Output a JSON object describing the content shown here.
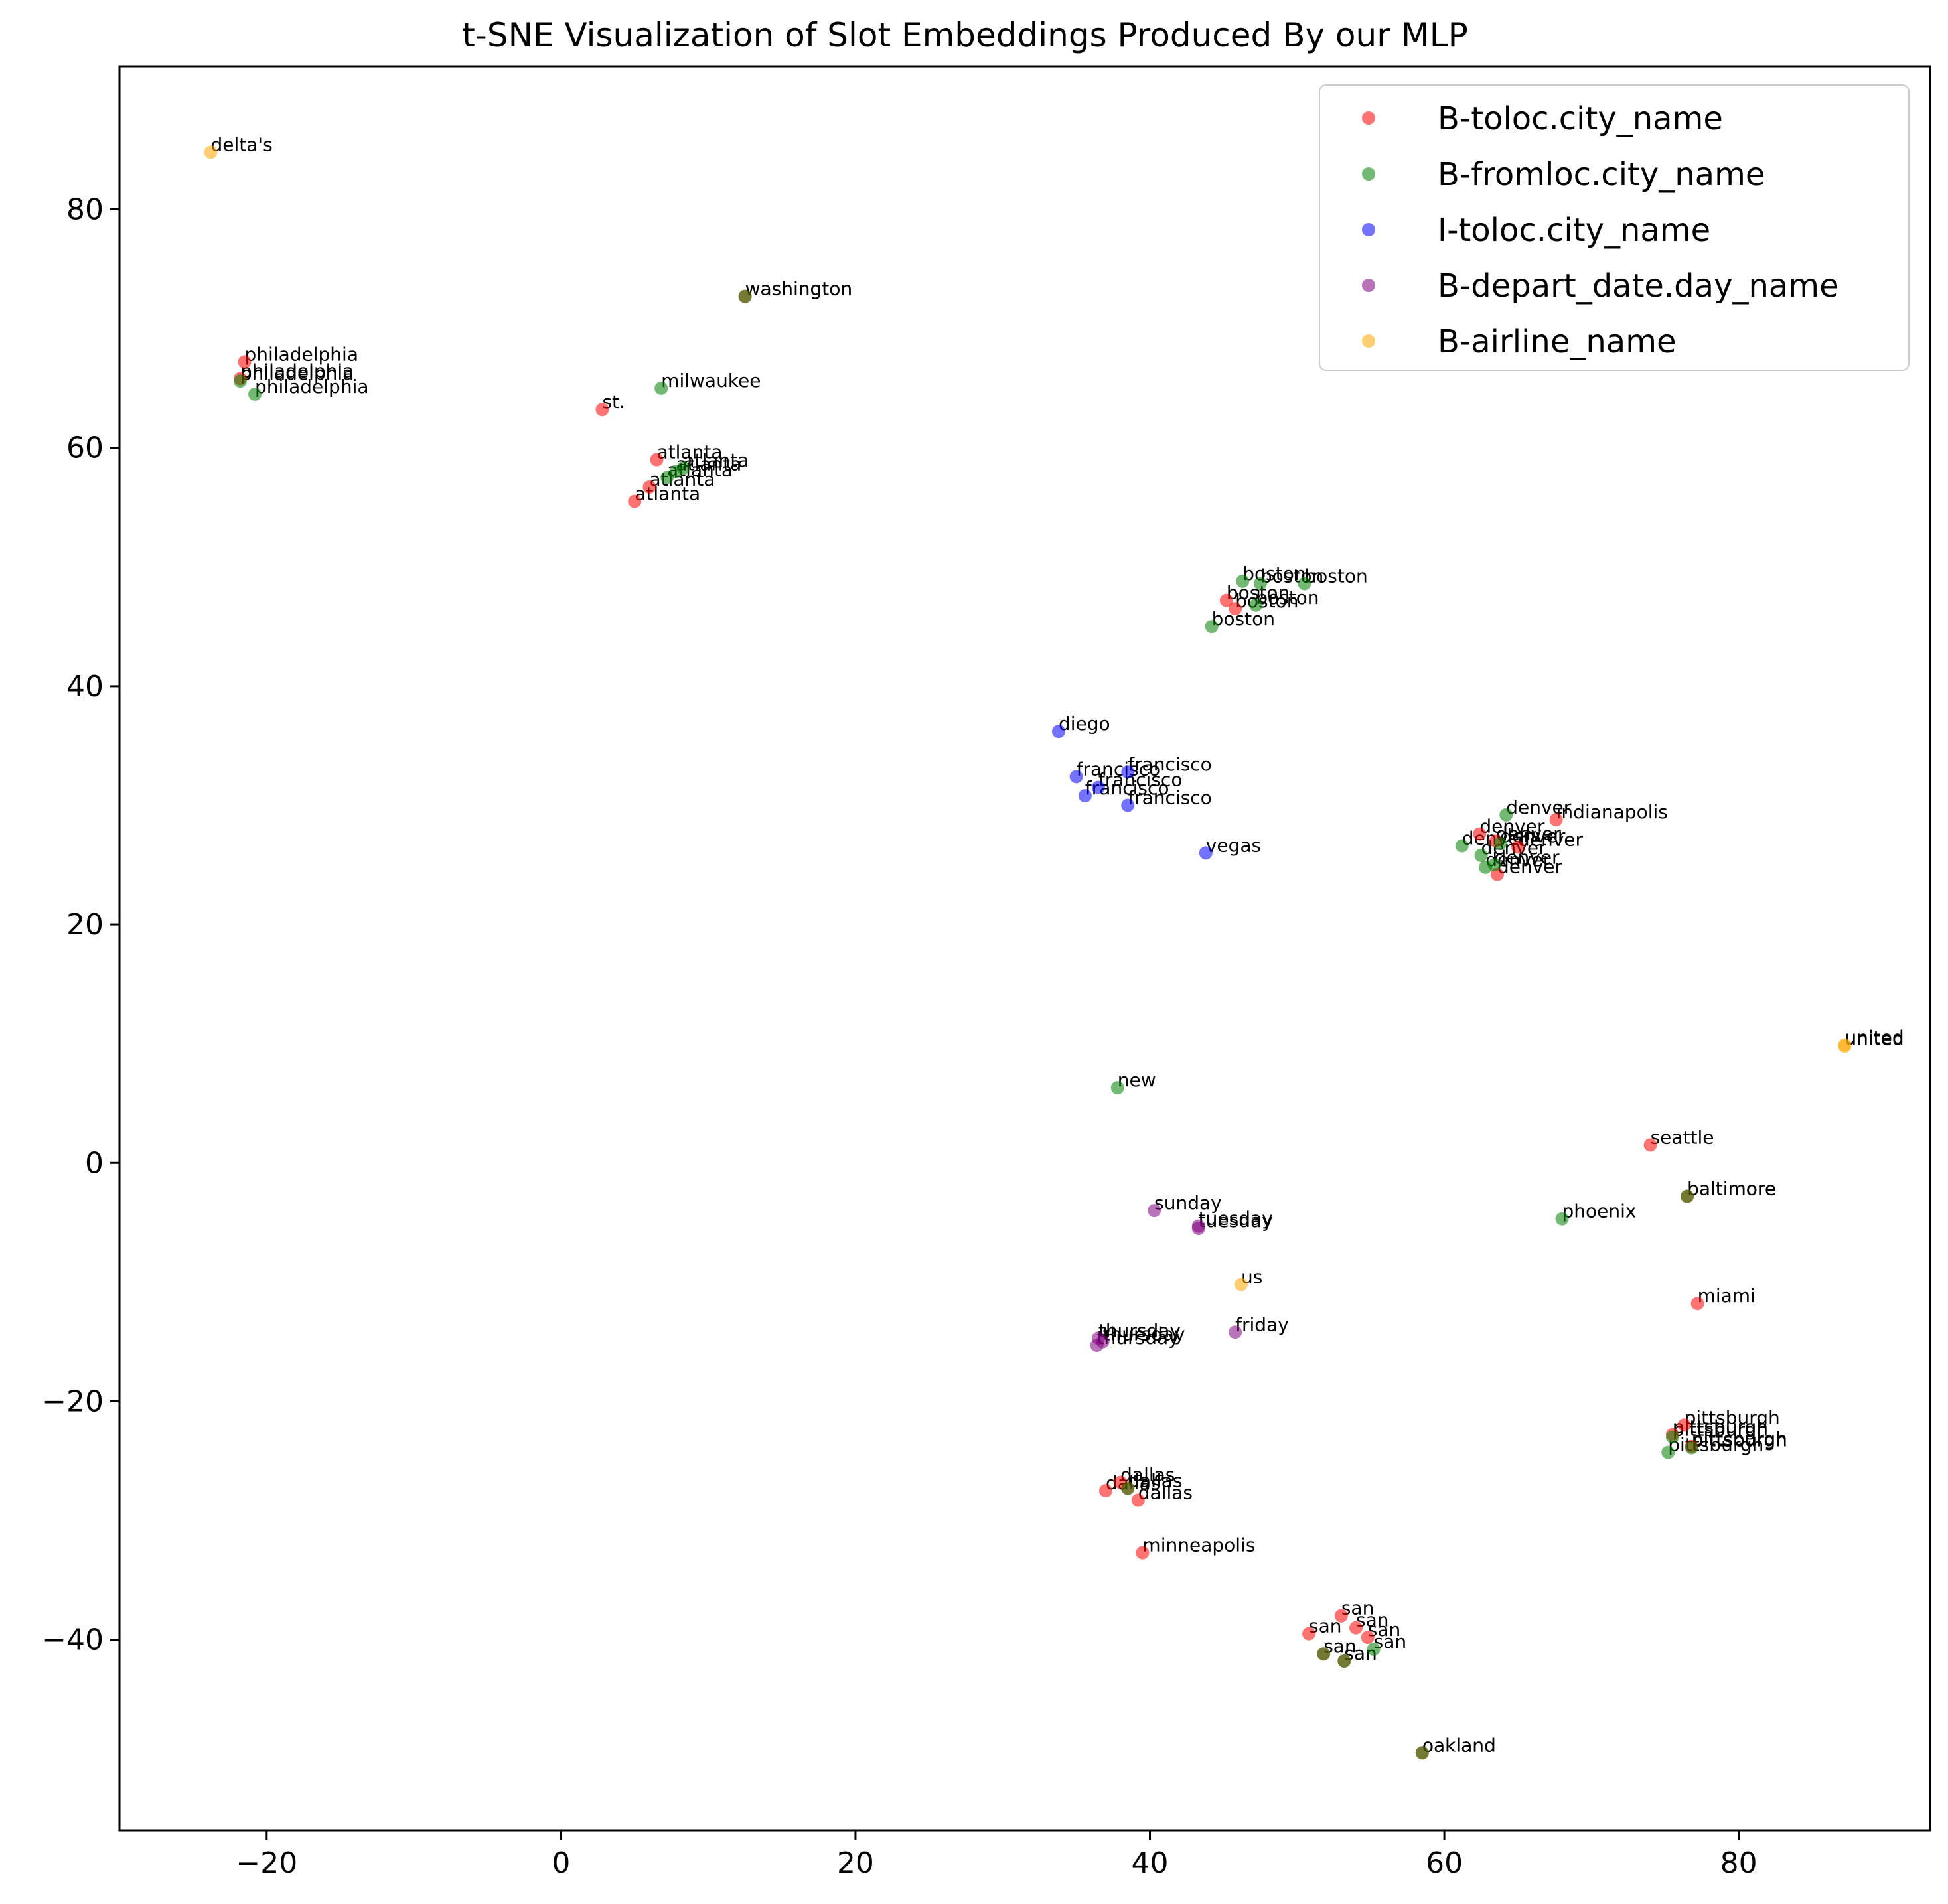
{
  "chart_data": {
    "type": "scatter",
    "title": "t-SNE Visualization of Slot Embeddings Produced By our MLP",
    "xlabel": "",
    "ylabel": "",
    "xlim": [
      -30,
      93
    ],
    "ylim": [
      -56,
      92
    ],
    "xticks": [
      -20,
      0,
      20,
      40,
      60,
      80
    ],
    "yticks": [
      -40,
      -20,
      0,
      20,
      40,
      60,
      80
    ],
    "xtick_labels": [
      "−20",
      "0",
      "20",
      "40",
      "60",
      "80"
    ],
    "ytick_labels": [
      "−40",
      "−20",
      "0",
      "20",
      "40",
      "60",
      "80"
    ],
    "grid": false,
    "legend_position": "top-right",
    "series": [
      {
        "name": "B-toloc.city_name",
        "color": "#ff0000",
        "points": [
          {
            "x": -21.5,
            "y": 67.2,
            "label": "philadelphia"
          },
          {
            "x": -21.8,
            "y": 65.8,
            "label": "philadelphia"
          },
          {
            "x": 2.8,
            "y": 63.2,
            "label": "st."
          },
          {
            "x": 6.5,
            "y": 59.0,
            "label": "atlanta"
          },
          {
            "x": 6.0,
            "y": 56.7,
            "label": "atlanta"
          },
          {
            "x": 5.0,
            "y": 55.5,
            "label": "atlanta"
          },
          {
            "x": 45.2,
            "y": 47.2,
            "label": "boston"
          },
          {
            "x": 45.8,
            "y": 46.5,
            "label": "boston"
          },
          {
            "x": 67.6,
            "y": 28.8,
            "label": "indianapolis"
          },
          {
            "x": 62.4,
            "y": 27.6,
            "label": "denver"
          },
          {
            "x": 63.5,
            "y": 27.0,
            "label": "denver"
          },
          {
            "x": 63.6,
            "y": 24.2,
            "label": "denver"
          },
          {
            "x": 65.0,
            "y": 26.5,
            "label": "denver"
          },
          {
            "x": 74.0,
            "y": 1.5,
            "label": "seattle"
          },
          {
            "x": 76.5,
            "y": -2.8,
            "label": "baltimore"
          },
          {
            "x": 77.2,
            "y": -11.8,
            "label": "miami"
          },
          {
            "x": 76.3,
            "y": -22.0,
            "label": "pittsburgh"
          },
          {
            "x": 75.5,
            "y": -22.8,
            "label": "pittsburgh"
          },
          {
            "x": 76.8,
            "y": -23.8,
            "label": "pittsburgh"
          },
          {
            "x": 38.0,
            "y": -26.8,
            "label": "dallas"
          },
          {
            "x": 38.5,
            "y": -27.3,
            "label": "dallas"
          },
          {
            "x": 37.0,
            "y": -27.5,
            "label": "dallas"
          },
          {
            "x": 39.2,
            "y": -28.3,
            "label": "dallas"
          },
          {
            "x": 39.5,
            "y": -32.7,
            "label": "minneapolis"
          },
          {
            "x": 53.0,
            "y": -38.0,
            "label": "san"
          },
          {
            "x": 54.0,
            "y": -39.0,
            "label": "san"
          },
          {
            "x": 54.8,
            "y": -39.8,
            "label": "san"
          },
          {
            "x": 50.8,
            "y": -39.5,
            "label": "san"
          },
          {
            "x": 51.8,
            "y": -41.2,
            "label": "san"
          },
          {
            "x": 53.2,
            "y": -41.8,
            "label": "san"
          },
          {
            "x": 12.5,
            "y": 72.7,
            "label": "washington"
          },
          {
            "x": 58.5,
            "y": -49.5,
            "label": "oakland"
          }
        ]
      },
      {
        "name": "B-fromloc.city_name",
        "color": "#008000",
        "points": [
          {
            "x": -20.8,
            "y": 64.5,
            "label": "philadelphia"
          },
          {
            "x": -21.8,
            "y": 65.6,
            "label": "philadelphia"
          },
          {
            "x": 6.8,
            "y": 65.0,
            "label": "milwaukee"
          },
          {
            "x": 7.2,
            "y": 57.5,
            "label": "atlanta"
          },
          {
            "x": 7.8,
            "y": 58.0,
            "label": "atlanta"
          },
          {
            "x": 8.3,
            "y": 58.3,
            "label": "atlanta"
          },
          {
            "x": 12.5,
            "y": 72.7,
            "label": "washington"
          },
          {
            "x": 46.3,
            "y": 48.8,
            "label": "boston"
          },
          {
            "x": 47.5,
            "y": 48.6,
            "label": "boston"
          },
          {
            "x": 50.5,
            "y": 48.6,
            "label": "boston"
          },
          {
            "x": 47.2,
            "y": 46.8,
            "label": "boston"
          },
          {
            "x": 44.2,
            "y": 45.0,
            "label": "boston"
          },
          {
            "x": 64.2,
            "y": 29.2,
            "label": "denver"
          },
          {
            "x": 61.2,
            "y": 26.6,
            "label": "denver"
          },
          {
            "x": 62.5,
            "y": 25.8,
            "label": "denver"
          },
          {
            "x": 63.8,
            "y": 26.8,
            "label": "denver"
          },
          {
            "x": 62.8,
            "y": 24.8,
            "label": "denver"
          },
          {
            "x": 63.4,
            "y": 25.0,
            "label": "denver"
          },
          {
            "x": 37.8,
            "y": 6.3,
            "label": "new"
          },
          {
            "x": 68.0,
            "y": -4.7,
            "label": "phoenix"
          },
          {
            "x": 76.5,
            "y": -2.8,
            "label": "baltimore"
          },
          {
            "x": 75.2,
            "y": -24.3,
            "label": "pittsburgh"
          },
          {
            "x": 75.5,
            "y": -23.0,
            "label": "pittsburgh"
          },
          {
            "x": 76.8,
            "y": -23.9,
            "label": "pittsburgh"
          },
          {
            "x": 55.2,
            "y": -40.8,
            "label": "san"
          },
          {
            "x": 51.8,
            "y": -41.2,
            "label": "san"
          },
          {
            "x": 53.2,
            "y": -41.8,
            "label": "san"
          },
          {
            "x": 38.5,
            "y": -27.3,
            "label": "dallas"
          },
          {
            "x": 58.5,
            "y": -49.5,
            "label": "oakland"
          }
        ]
      },
      {
        "name": "I-toloc.city_name",
        "color": "#0000ff",
        "points": [
          {
            "x": 33.8,
            "y": 36.2,
            "label": "diego"
          },
          {
            "x": 35.0,
            "y": 32.4,
            "label": "francisco"
          },
          {
            "x": 38.5,
            "y": 32.8,
            "label": "francisco"
          },
          {
            "x": 36.5,
            "y": 31.5,
            "label": "francisco"
          },
          {
            "x": 35.6,
            "y": 30.8,
            "label": "francisco"
          },
          {
            "x": 38.5,
            "y": 30.0,
            "label": "francisco"
          },
          {
            "x": 43.8,
            "y": 26.0,
            "label": "vegas"
          }
        ]
      },
      {
        "name": "B-depart_date.day_name",
        "color": "#800080",
        "points": [
          {
            "x": 40.3,
            "y": -4.0,
            "label": "sunday"
          },
          {
            "x": 43.3,
            "y": -5.3,
            "label": "tuesday"
          },
          {
            "x": 43.3,
            "y": -5.5,
            "label": "tuesday"
          },
          {
            "x": 45.8,
            "y": -14.2,
            "label": "friday"
          },
          {
            "x": 36.5,
            "y": -14.7,
            "label": "thursday"
          },
          {
            "x": 36.8,
            "y": -15.0,
            "label": "thursday"
          },
          {
            "x": 36.4,
            "y": -15.3,
            "label": "thursday"
          }
        ]
      },
      {
        "name": "B-airline_name",
        "color": "#ffa500",
        "points": [
          {
            "x": -23.8,
            "y": 84.8,
            "label": "delta's"
          },
          {
            "x": 87.2,
            "y": 9.8,
            "label": "united"
          },
          {
            "x": 87.2,
            "y": 9.9,
            "label": "united"
          },
          {
            "x": 46.2,
            "y": -10.2,
            "label": "us"
          }
        ]
      }
    ]
  }
}
